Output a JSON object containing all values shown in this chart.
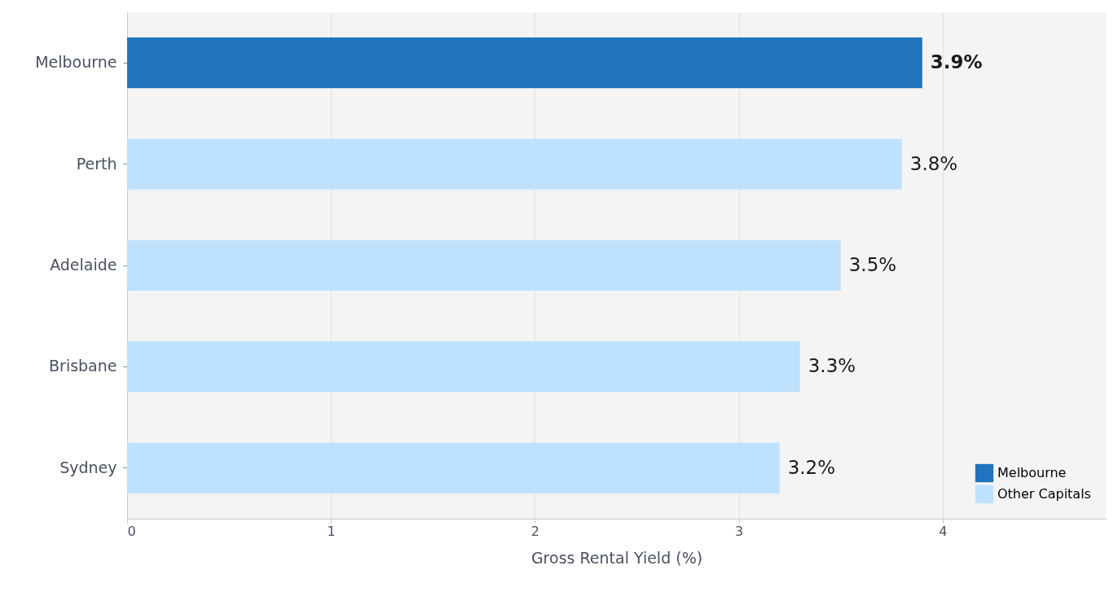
{
  "chart_data": {
    "type": "bar",
    "orientation": "horizontal",
    "xlabel": "Gross Rental Yield (%)",
    "categories": [
      "Melbourne",
      "Perth",
      "Adelaide",
      "Brisbane",
      "Sydney"
    ],
    "series": [
      {
        "name": "Melbourne",
        "color": "#1f74bd",
        "values": [
          3.9,
          null,
          null,
          null,
          null
        ],
        "value_labels": [
          "3.9%",
          null,
          null,
          null,
          null
        ]
      },
      {
        "name": "Other Capitals",
        "color": "#bee2fe",
        "values": [
          null,
          3.8,
          3.5,
          3.3,
          3.2
        ],
        "value_labels": [
          null,
          "3.8%",
          "3.5%",
          "3.3%",
          "3.2%"
        ]
      }
    ],
    "xlim": [
      0,
      4.8
    ],
    "xticks": [
      0,
      1,
      2,
      3,
      4
    ],
    "grid": "x",
    "legend": "bottom right"
  }
}
